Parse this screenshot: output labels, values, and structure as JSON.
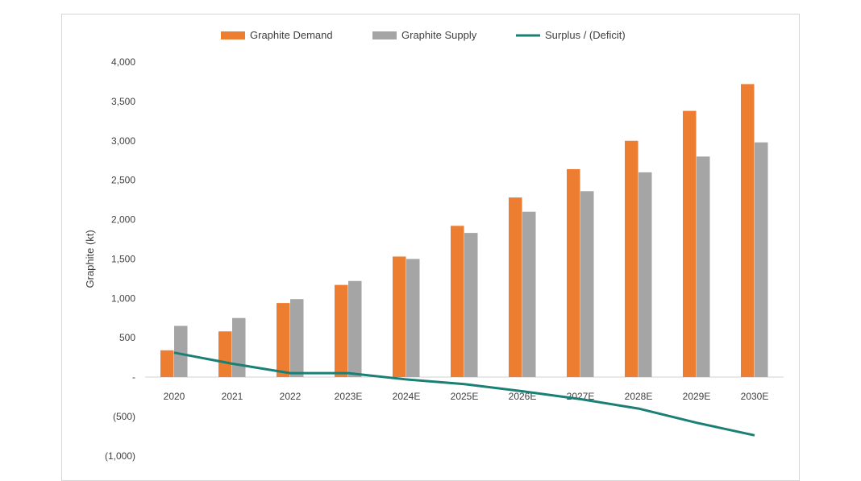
{
  "chart_data": {
    "type": "bar",
    "categories": [
      "2020",
      "2021",
      "2022",
      "2023E",
      "2024E",
      "2025E",
      "2026E",
      "2027E",
      "2028E",
      "2029E",
      "2030E"
    ],
    "series": [
      {
        "name": "Graphite Demand",
        "kind": "bar",
        "color": "#ed7d31",
        "values": [
          340,
          580,
          940,
          1170,
          1530,
          1920,
          2280,
          2640,
          3000,
          3380,
          3720
        ]
      },
      {
        "name": "Graphite Supply",
        "kind": "bar",
        "color": "#a5a5a5",
        "values": [
          650,
          750,
          990,
          1220,
          1500,
          1830,
          2100,
          2360,
          2600,
          2800,
          2980
        ]
      },
      {
        "name": "Surplus / (Deficit)",
        "kind": "line",
        "color": "#1a7f74",
        "values": [
          310,
          170,
          50,
          50,
          -30,
          -90,
          -180,
          -280,
          -400,
          -580,
          -740
        ]
      }
    ],
    "ylabel": "Graphite (kt)",
    "ylim": [
      -1000,
      4000
    ],
    "yticks": [
      {
        "value": 4000,
        "label": "4,000"
      },
      {
        "value": 3500,
        "label": "3,500"
      },
      {
        "value": 3000,
        "label": "3,000"
      },
      {
        "value": 2500,
        "label": "2,500"
      },
      {
        "value": 2000,
        "label": "2,000"
      },
      {
        "value": 1500,
        "label": "1,500"
      },
      {
        "value": 1000,
        "label": "1,000"
      },
      {
        "value": 500,
        "label": "500"
      },
      {
        "value": 0,
        "label": "-"
      },
      {
        "value": -500,
        "label": "(500)"
      },
      {
        "value": -1000,
        "label": "(1,000)"
      }
    ],
    "grid": false,
    "legend_position": "top-center"
  }
}
